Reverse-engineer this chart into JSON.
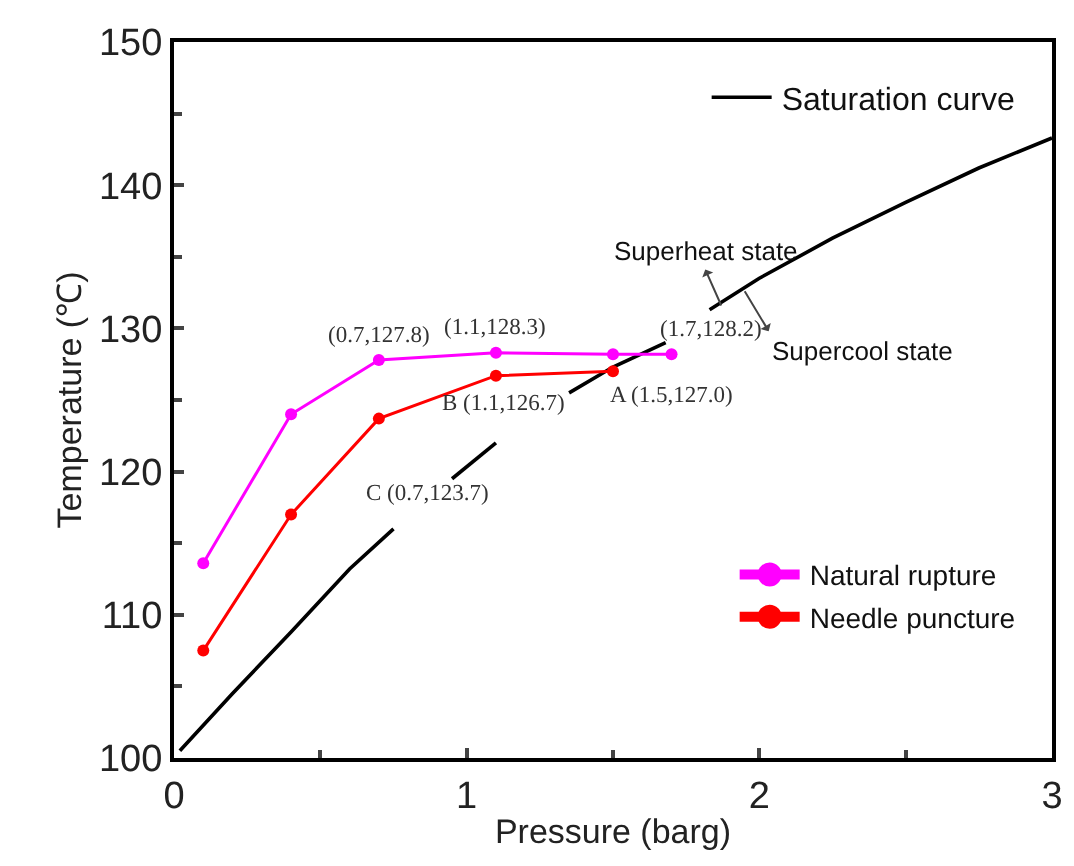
{
  "chart_data": {
    "type": "line",
    "xlabel": "Pressure (barg)",
    "ylabel": "Temperature (℃)",
    "xlim": [
      0,
      3
    ],
    "xticks": [
      0,
      1,
      2,
      3
    ],
    "ylim": [
      100,
      150
    ],
    "yticks": [
      100,
      110,
      120,
      130,
      140,
      150
    ],
    "legend": "top right",
    "marker": "circle",
    "line_style": "solid",
    "series": [
      {
        "name": "Saturation curve",
        "color": "#000000",
        "marker": "none",
        "x": [
          0.02,
          0.2,
          0.4,
          0.6,
          0.75,
          0.85,
          0.95,
          1.1,
          1.2,
          1.35,
          1.5,
          1.68,
          1.75,
          1.83,
          2,
          2.25,
          2.5,
          2.75,
          3
        ],
        "values": [
          100.5,
          104.5,
          108.8,
          113.2,
          116,
          null,
          119.5,
          122,
          null,
          125.5,
          127.3,
          129,
          null,
          131.3,
          133.5,
          136.3,
          138.8,
          141.2,
          143.3
        ]
      },
      {
        "name": "Natural rupture",
        "color": "#ff00ff",
        "x": [
          1.7,
          1.5,
          1.1,
          0.7,
          0.4,
          0.1
        ],
        "values": [
          128.2,
          128.2,
          128.3,
          127.8,
          124,
          113.6
        ]
      },
      {
        "name": "Needle puncture",
        "color": "#ff0000",
        "x": [
          1.5,
          1.1,
          0.7,
          0.4,
          0.1
        ],
        "values": [
          127.0,
          126.7,
          123.7,
          117,
          107.5
        ]
      }
    ],
    "annotations": [
      {
        "text": "(0.7,127.8)",
        "x": 0.7,
        "y": 127.8
      },
      {
        "text": "(1.1,128.3)",
        "x": 1.1,
        "y": 128.3
      },
      {
        "text": "(1.7,128.2)",
        "x": 1.7,
        "y": 128.2
      },
      {
        "text": "A (1.5,127.0)",
        "x": 1.5,
        "y": 127.0
      },
      {
        "text": "B (1.1,126.7)",
        "x": 1.1,
        "y": 126.7
      },
      {
        "text": "C (0.7,123.7)",
        "x": 0.7,
        "y": 123.7
      },
      {
        "text": "Superheat state",
        "x": 1.87,
        "y": 131.6
      },
      {
        "text": "Supercool state",
        "x": 1.95,
        "y": 132.6
      }
    ]
  }
}
